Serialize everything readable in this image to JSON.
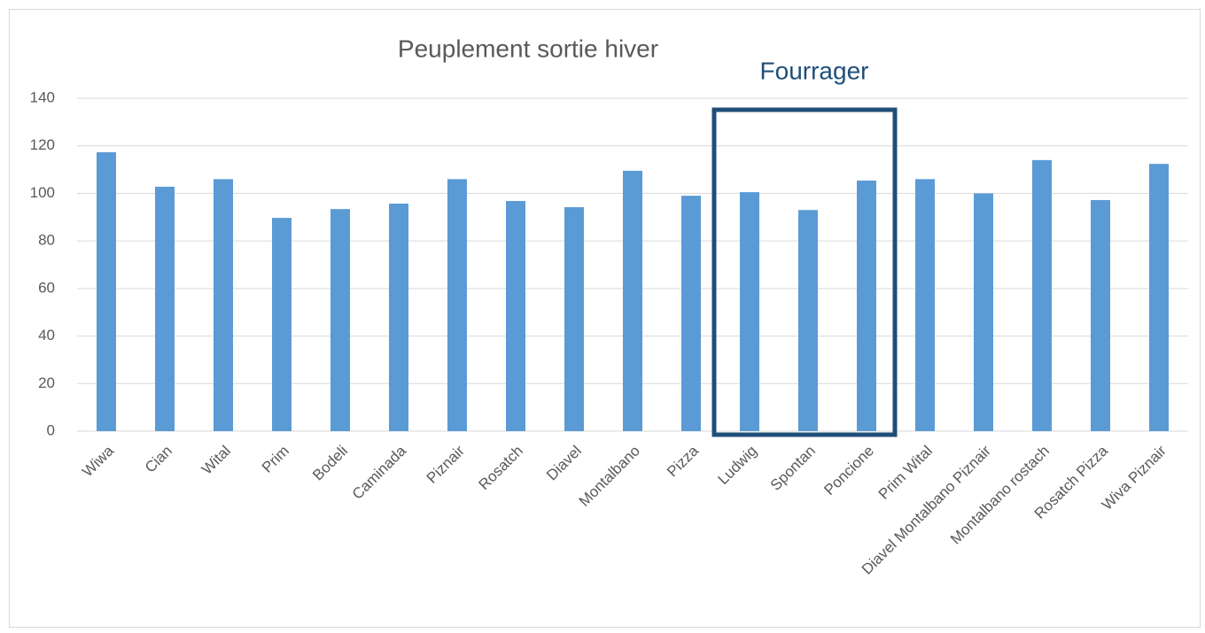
{
  "chart_data": {
    "type": "bar",
    "title": "Peuplement sortie hiver",
    "annotation": "Fourrager",
    "categories": [
      "Wiwa",
      "Cian",
      "Wital",
      "Prim",
      "Bodeli",
      "Caminada",
      "Piznair",
      "Rosatch",
      "Diavel",
      "Montalbano",
      "Pizza",
      "Ludwig",
      "Spontan",
      "Poncione",
      "Prim Wital",
      "Diavel Montalbano Piznair",
      "Montalbano rostach",
      "Rosatch Pizza",
      "Wiva Piznair"
    ],
    "values": [
      117.3,
      102.8,
      106,
      89.7,
      93.4,
      95.7,
      106,
      96.8,
      94.2,
      109.5,
      99,
      100.5,
      93,
      105.4,
      106,
      100,
      114,
      97.2,
      112.4
    ],
    "color": "#5b9bd5",
    "ylim": [
      0,
      140
    ],
    "yticks": [
      0,
      20,
      40,
      60,
      80,
      100,
      120,
      140
    ],
    "grid": true
  }
}
